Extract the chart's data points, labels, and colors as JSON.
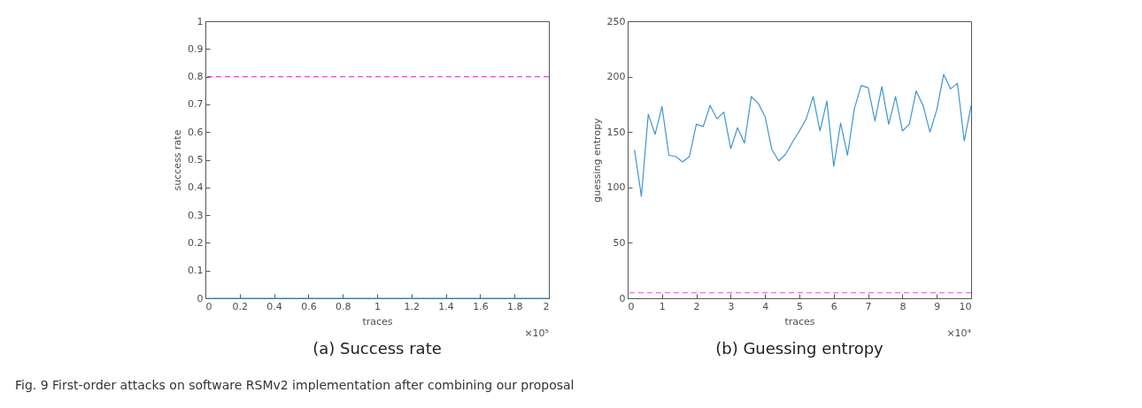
{
  "chart_data": [
    {
      "type": "line",
      "xlabel": "traces",
      "ylabel": "success rate",
      "x": [
        0,
        0.2,
        0.4,
        0.6,
        0.8,
        1,
        1.2,
        1.4,
        1.6,
        1.8,
        2
      ],
      "series": [
        {
          "color": "#3d97d3",
          "values": [
            0,
            0,
            0,
            0,
            0,
            0,
            0,
            0,
            0,
            0,
            0
          ]
        }
      ],
      "xlim": [
        0,
        2
      ],
      "xticks": [
        0,
        0.2,
        0.4,
        0.6,
        0.8,
        1,
        1.2,
        1.4,
        1.6,
        1.8,
        2
      ],
      "ylim": [
        0,
        1
      ],
      "yticks": [
        0,
        0.1,
        0.2,
        0.3,
        0.4,
        0.5,
        0.6,
        0.7,
        0.8,
        0.9,
        1
      ],
      "ref_lines": [
        {
          "axis": "y",
          "value": 0.8,
          "color": "#ff33ff",
          "line_style": "dashed"
        }
      ],
      "annotations": [
        "×10⁵",
        "(a) Success rate",
        "Fig. 9 First-order attacks on software RSMv2 implementation after combining our proposal"
      ]
    },
    {
      "type": "line",
      "xlabel": "traces",
      "ylabel": "guessing entropy",
      "x": [
        0.2,
        0.4,
        0.6,
        0.8,
        1,
        1.2,
        1.4,
        1.6,
        1.8,
        2,
        2.2,
        2.4,
        2.6,
        2.8,
        3,
        3.2,
        3.4,
        3.6,
        3.8,
        4,
        4.2,
        4.4,
        4.6,
        4.8,
        5,
        5.2,
        5.4,
        5.6,
        5.8,
        6,
        6.2,
        6.4,
        6.6,
        6.8,
        7,
        7.2,
        7.4,
        7.6,
        7.8,
        8,
        8.2,
        8.4,
        8.6,
        8.8,
        9,
        9.2,
        9.4,
        9.6,
        9.8,
        10
      ],
      "series": [
        {
          "color": "#3d97d3",
          "values": [
            134,
            92,
            166,
            148,
            173,
            129,
            128,
            123,
            128,
            157,
            155,
            174,
            162,
            168,
            135,
            154,
            140,
            182,
            176,
            164,
            134,
            124,
            130,
            141,
            151,
            162,
            182,
            151,
            178,
            119,
            158,
            129,
            171,
            192,
            190,
            160,
            191,
            157,
            182,
            151,
            157,
            187,
            174,
            150,
            170,
            202,
            189,
            194,
            142,
            174
          ]
        }
      ],
      "xlim": [
        0,
        10
      ],
      "xticks": [
        0,
        1,
        2,
        3,
        4,
        5,
        6,
        7,
        8,
        9,
        10
      ],
      "ylim": [
        0,
        250
      ],
      "yticks": [
        0,
        50,
        100,
        150,
        200,
        250
      ],
      "ref_lines": [
        {
          "axis": "y",
          "value": 5,
          "color": "#ff33ff",
          "line_style": "dashed"
        }
      ],
      "annotations": [
        "×10⁴",
        "(b) Guessing entropy"
      ]
    }
  ]
}
